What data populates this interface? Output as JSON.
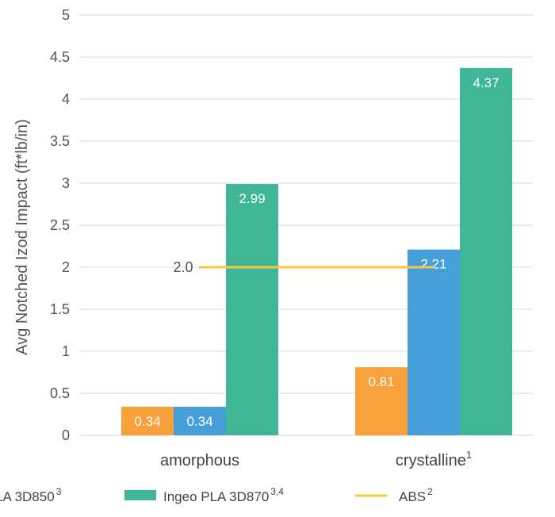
{
  "chart_data": {
    "type": "bar",
    "ylabel": "Avg Notched Izod Impact  (ft*lb/in)",
    "ylim": [
      0,
      5
    ],
    "yticks": [
      "0",
      "0.5",
      "1",
      "1.5",
      "2",
      "2.5",
      "3",
      "3.5",
      "4",
      "4.5",
      "5"
    ],
    "grid": true,
    "categories": [
      {
        "label": "amorphous",
        "sup": ""
      },
      {
        "label": "crystalline",
        "sup": "1"
      }
    ],
    "series": [
      {
        "name": "LA 3D850",
        "sup": "3",
        "color": "#f8a13b",
        "values": [
          0.34,
          0.81
        ],
        "labels": [
          "0.34",
          "0.81"
        ]
      },
      {
        "name": "",
        "sup": "",
        "color": "#469fd8",
        "values": [
          0.34,
          2.21
        ],
        "labels": [
          "0.34",
          "2.21"
        ]
      },
      {
        "name": "Ingeo PLA 3D870",
        "sup": "3,4",
        "color": "#40b699",
        "values": [
          2.99,
          4.37
        ],
        "labels": [
          "2.99",
          "4.37"
        ]
      }
    ],
    "reference_line": {
      "name": "ABS",
      "sup": "2",
      "value": 2.0,
      "label": "2.0",
      "color": "#f8c93c"
    },
    "legend_position": "bottom"
  }
}
